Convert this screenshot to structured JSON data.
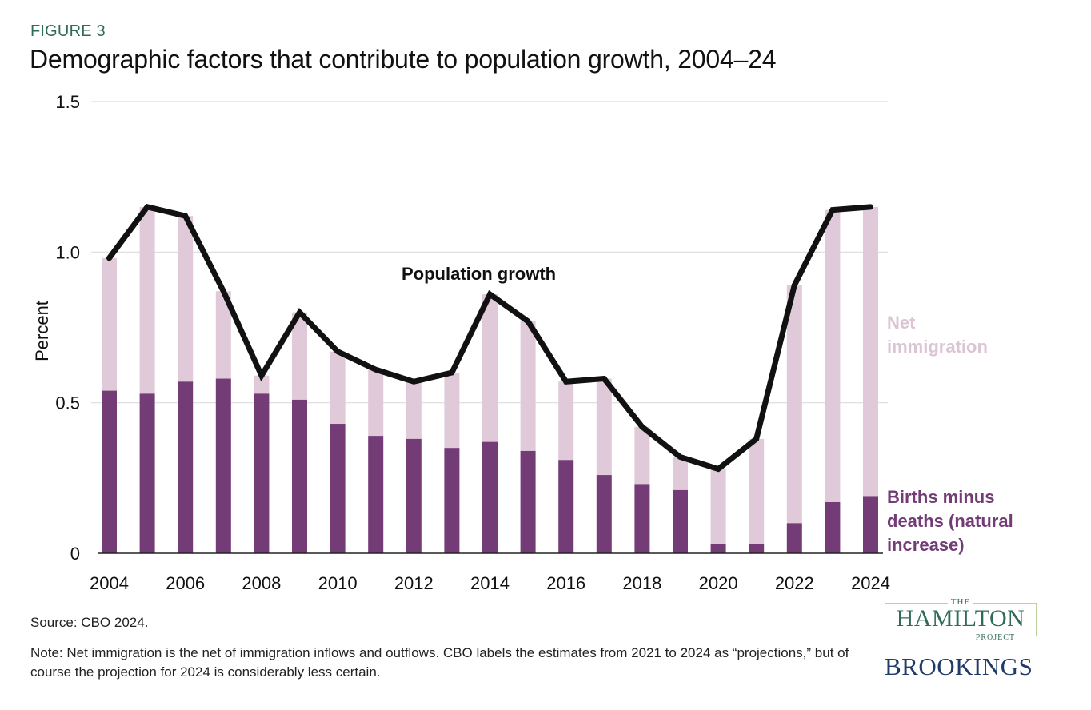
{
  "figure_label": "FIGURE 3",
  "title": "Demographic factors that contribute to population growth, 2004–24",
  "colors": {
    "natural_increase": "#743c77",
    "net_immigration": "#e0cad9",
    "population_growth": "#111111",
    "gridline": "#dddddd",
    "figure_label": "#2f6b57"
  },
  "chart_data": {
    "type": "bar",
    "stacked": true,
    "title": "Demographic factors that contribute to population growth, 2004–24",
    "xlabel": "",
    "ylabel": "Percent",
    "ylim": [
      0,
      1.5
    ],
    "yticks": [
      0,
      0.5,
      1.0,
      1.5
    ],
    "ytick_labels": [
      "0",
      "0.5",
      "1.0",
      "1.5"
    ],
    "grid": true,
    "categories": [
      "2004",
      "2005",
      "2006",
      "2007",
      "2008",
      "2009",
      "2010",
      "2011",
      "2012",
      "2013",
      "2014",
      "2015",
      "2016",
      "2017",
      "2018",
      "2019",
      "2020",
      "2021",
      "2022",
      "2023",
      "2024"
    ],
    "xtick_labels": [
      "2004",
      "2006",
      "2008",
      "2010",
      "2012",
      "2014",
      "2016",
      "2018",
      "2020",
      "2022",
      "2024"
    ],
    "series": [
      {
        "name": "Births minus deaths (natural increase)",
        "kind": "bar",
        "values": [
          0.54,
          0.53,
          0.57,
          0.58,
          0.53,
          0.51,
          0.43,
          0.39,
          0.38,
          0.35,
          0.37,
          0.34,
          0.31,
          0.26,
          0.23,
          0.21,
          0.03,
          0.03,
          0.1,
          0.17,
          0.19
        ]
      },
      {
        "name": "Net immigration",
        "kind": "bar",
        "values": [
          0.44,
          0.62,
          0.55,
          0.29,
          0.06,
          0.29,
          0.24,
          0.22,
          0.19,
          0.25,
          0.49,
          0.43,
          0.26,
          0.32,
          0.19,
          0.11,
          0.25,
          0.35,
          0.79,
          0.97,
          0.96
        ]
      },
      {
        "name": "Population growth",
        "kind": "line",
        "values": [
          0.98,
          1.15,
          1.12,
          0.87,
          0.59,
          0.8,
          0.67,
          0.61,
          0.57,
          0.6,
          0.86,
          0.77,
          0.57,
          0.58,
          0.42,
          0.32,
          0.28,
          0.38,
          0.89,
          1.14,
          1.15
        ]
      }
    ],
    "annotations": [
      {
        "text": "Population growth",
        "target": "line"
      }
    ],
    "legend": {
      "placement": "right",
      "net_immigration": [
        "Net",
        "immigration"
      ],
      "natural_increase": [
        "Births minus",
        "deaths (natural",
        "increase)"
      ]
    }
  },
  "footer": {
    "source": "Source: CBO 2024.",
    "note": "Note: Net immigration is the net of immigration inflows and outflows. CBO labels the estimates from 2021 to 2024 as “projections,” but of course the projection for 2024 is considerably less certain."
  },
  "logos": {
    "hamilton_the": "THE",
    "hamilton_name": "HAMILTON",
    "hamilton_project": "PROJECT",
    "brookings": "BROOKINGS"
  }
}
